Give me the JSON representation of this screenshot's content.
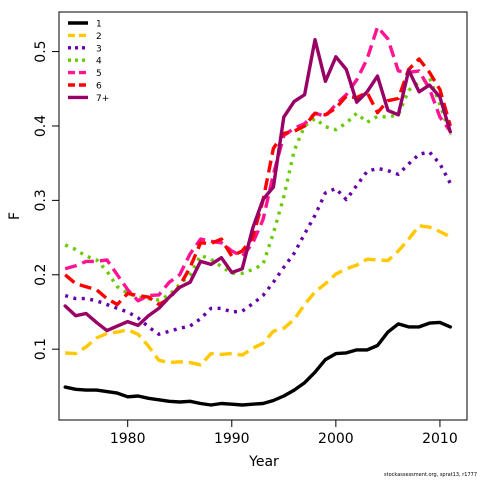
{
  "footer": {
    "credit": "stockassessment.org, sprat13, r1777"
  },
  "chart_data": {
    "type": "line",
    "title": "",
    "xlabel": "Year",
    "ylabel": "F",
    "xlim": [
      1973.4,
      2012.6
    ],
    "ylim": [
      0.0048,
      0.5532
    ],
    "x_ticks": [
      1980,
      1990,
      2000,
      2010
    ],
    "y_ticks": [
      0.1,
      0.2,
      0.3,
      0.4,
      0.5
    ],
    "y_tick_labels": [
      "0.1",
      "0.2",
      "0.3",
      "0.4",
      "0.5"
    ],
    "grid": false,
    "legend_position": "top-left",
    "x": [
      1974,
      1975,
      1976,
      1977,
      1978,
      1979,
      1980,
      1981,
      1982,
      1983,
      1984,
      1985,
      1986,
      1987,
      1988,
      1989,
      1990,
      1991,
      1992,
      1993,
      1994,
      1995,
      1996,
      1997,
      1998,
      1999,
      2000,
      2001,
      2002,
      2003,
      2004,
      2005,
      2006,
      2007,
      2008,
      2009,
      2010,
      2011
    ],
    "series": [
      {
        "name": "1",
        "color": "#000000",
        "dash": "solid",
        "values": [
          0.049,
          0.046,
          0.045,
          0.045,
          0.043,
          0.041,
          0.036,
          0.037,
          0.034,
          0.032,
          0.03,
          0.029,
          0.03,
          0.027,
          0.025,
          0.027,
          0.026,
          0.025,
          0.026,
          0.027,
          0.031,
          0.037,
          0.045,
          0.055,
          0.069,
          0.086,
          0.094,
          0.095,
          0.099,
          0.099,
          0.105,
          0.123,
          0.134,
          0.13,
          0.13,
          0.135,
          0.136,
          0.13
        ]
      },
      {
        "name": "2",
        "color": "#FFC800",
        "dash": "dashed",
        "values": [
          0.095,
          0.094,
          0.103,
          0.115,
          0.121,
          0.123,
          0.126,
          0.12,
          0.104,
          0.085,
          0.082,
          0.083,
          0.082,
          0.079,
          0.094,
          0.093,
          0.094,
          0.092,
          0.101,
          0.108,
          0.124,
          0.128,
          0.14,
          0.16,
          0.177,
          0.188,
          0.201,
          0.208,
          0.213,
          0.221,
          0.22,
          0.219,
          0.232,
          0.248,
          0.266,
          0.264,
          0.258,
          0.251
        ]
      },
      {
        "name": "3",
        "color": "#6600AA",
        "dash": "dotted",
        "values": [
          0.172,
          0.168,
          0.168,
          0.165,
          0.16,
          0.155,
          0.15,
          0.142,
          0.13,
          0.12,
          0.124,
          0.128,
          0.131,
          0.141,
          0.155,
          0.155,
          0.15,
          0.151,
          0.161,
          0.172,
          0.19,
          0.21,
          0.229,
          0.255,
          0.28,
          0.31,
          0.316,
          0.301,
          0.32,
          0.339,
          0.343,
          0.34,
          0.335,
          0.349,
          0.362,
          0.365,
          0.349,
          0.323
        ]
      },
      {
        "name": "4",
        "color": "#66CC00",
        "dash": "dotted",
        "values": [
          0.24,
          0.234,
          0.225,
          0.22,
          0.205,
          0.184,
          0.175,
          0.17,
          0.168,
          0.166,
          0.173,
          0.187,
          0.2,
          0.226,
          0.221,
          0.211,
          0.202,
          0.202,
          0.207,
          0.214,
          0.256,
          0.305,
          0.367,
          0.4,
          0.41,
          0.399,
          0.395,
          0.404,
          0.417,
          0.405,
          0.413,
          0.412,
          0.415,
          0.448,
          0.459,
          0.465,
          0.429,
          0.388
        ]
      },
      {
        "name": "5",
        "color": "#FF1493",
        "dash": "dashed",
        "values": [
          0.208,
          0.212,
          0.218,
          0.218,
          0.22,
          0.2,
          0.18,
          0.165,
          0.172,
          0.173,
          0.19,
          0.2,
          0.228,
          0.248,
          0.245,
          0.243,
          0.232,
          0.225,
          0.242,
          0.274,
          0.335,
          0.387,
          0.397,
          0.403,
          0.417,
          0.413,
          0.429,
          0.442,
          0.462,
          0.49,
          0.533,
          0.517,
          0.474,
          0.472,
          0.474,
          0.45,
          0.412,
          0.393
        ]
      },
      {
        "name": "6",
        "color": "#FF0000",
        "dash": "dashed",
        "values": [
          0.2,
          0.188,
          0.184,
          0.18,
          0.168,
          0.16,
          0.175,
          0.172,
          0.17,
          0.16,
          0.168,
          0.185,
          0.21,
          0.243,
          0.242,
          0.248,
          0.225,
          0.232,
          0.25,
          0.3,
          0.37,
          0.39,
          0.393,
          0.4,
          0.417,
          0.415,
          0.424,
          0.44,
          0.438,
          0.445,
          0.418,
          0.434,
          0.437,
          0.476,
          0.49,
          0.472,
          0.449,
          0.4
        ]
      },
      {
        "name": "7+",
        "color": "#990066",
        "dash": "solid",
        "values": [
          0.158,
          0.145,
          0.148,
          0.136,
          0.125,
          0.131,
          0.137,
          0.132,
          0.145,
          0.155,
          0.17,
          0.183,
          0.19,
          0.218,
          0.214,
          0.223,
          0.203,
          0.208,
          0.262,
          0.301,
          0.318,
          0.412,
          0.433,
          0.442,
          0.516,
          0.46,
          0.493,
          0.476,
          0.432,
          0.446,
          0.467,
          0.421,
          0.415,
          0.475,
          0.446,
          0.455,
          0.439,
          0.392
        ]
      }
    ]
  }
}
